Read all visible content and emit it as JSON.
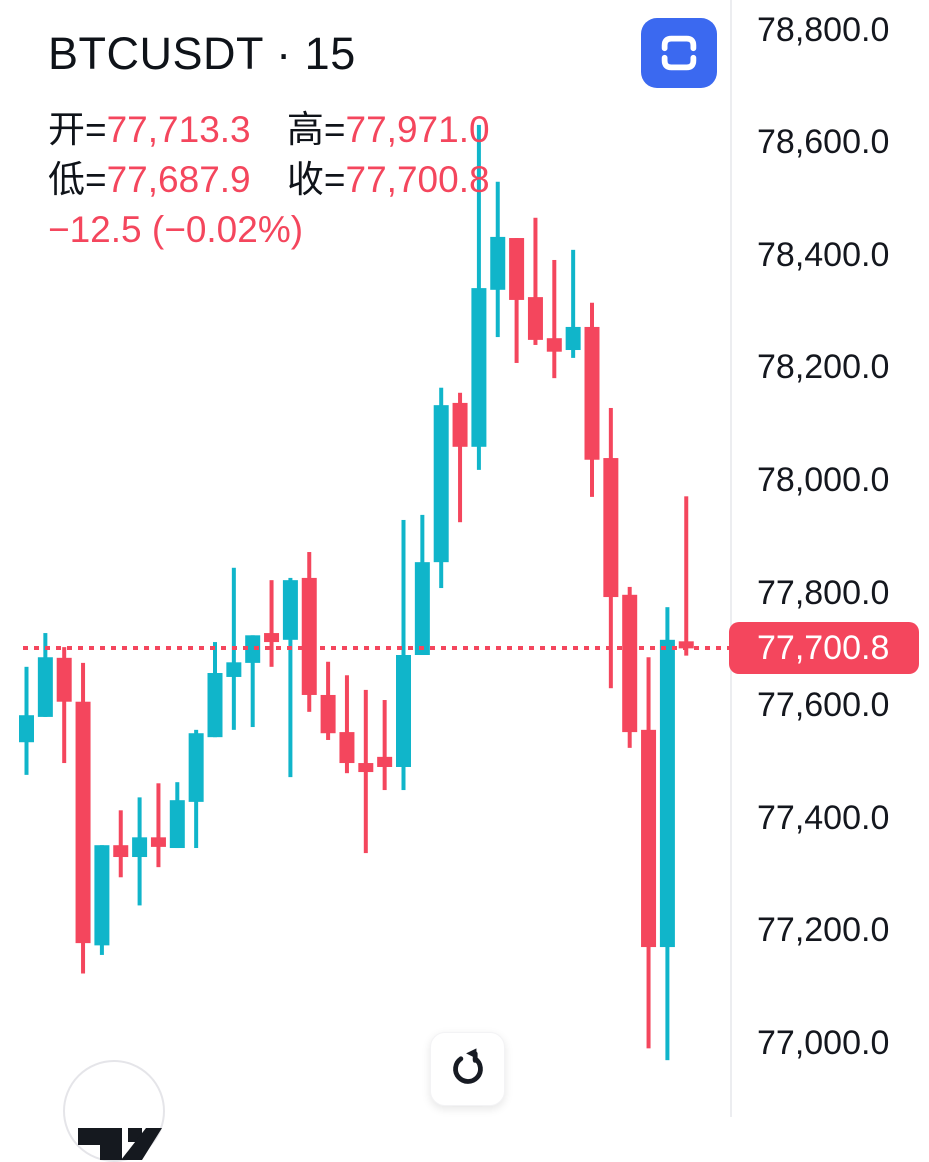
{
  "header": {
    "title": "BTCUSDT · 15",
    "open_label": "开=",
    "open_value": "77,713.3",
    "high_label": "高=",
    "high_value": "77,971.0",
    "low_label": "低=",
    "low_value": "77,687.9",
    "close_label": "收=",
    "close_value": "77,700.8",
    "change": "−12.5 (−0.02%)"
  },
  "icons": {
    "fullscreen": "fullscreen-frame-icon",
    "refresh": "refresh-icon",
    "logo": "tradingview-logo"
  },
  "y_axis": {
    "ticks": [
      {
        "value": 78800,
        "label": "78,800.0"
      },
      {
        "value": 78600,
        "label": "78,600.0"
      },
      {
        "value": 78400,
        "label": "78,400.0"
      },
      {
        "value": 78200,
        "label": "78,200.0"
      },
      {
        "value": 78000,
        "label": "78,000.0"
      },
      {
        "value": 77800,
        "label": "77,800.0"
      },
      {
        "value": 77600,
        "label": "77,600.0"
      },
      {
        "value": 77400,
        "label": "77,400.0"
      },
      {
        "value": 77200,
        "label": "77,200.0"
      },
      {
        "value": 77000,
        "label": "77,000.0"
      }
    ],
    "price_badge": {
      "value": 77700.8,
      "label": "77,700.8"
    }
  },
  "chart_data": {
    "type": "candlestick",
    "title": "BTCUSDT · 15",
    "symbol": "BTCUSDT",
    "interval": "15",
    "price_range_top": 78853,
    "price_range_bottom": 76868,
    "price_line_value": 77700.8,
    "up_color": "#10B5CA",
    "down_color": "#F4465D",
    "grid": false,
    "candle_format": [
      "open",
      "high",
      "low",
      "close"
    ],
    "candles": [
      [
        77534,
        77668,
        77476,
        77582
      ],
      [
        77579,
        77728,
        77579,
        77685
      ],
      [
        77684,
        77703,
        77497,
        77606
      ],
      [
        77606,
        77675,
        77123,
        77177
      ],
      [
        77173,
        77351,
        77156,
        77351
      ],
      [
        77351,
        77413,
        77294,
        77330
      ],
      [
        77330,
        77436,
        77244,
        77365
      ],
      [
        77365,
        77461,
        77312,
        77348
      ],
      [
        77346,
        77463,
        77346,
        77431
      ],
      [
        77428,
        77556,
        77346,
        77550
      ],
      [
        77543,
        77712,
        77543,
        77657
      ],
      [
        77650,
        77844,
        77556,
        77676
      ],
      [
        77675,
        77724,
        77561,
        77724
      ],
      [
        77728,
        77822,
        77668,
        77712
      ],
      [
        77716,
        77826,
        77472,
        77822
      ],
      [
        77826,
        77872,
        77588,
        77618
      ],
      [
        77618,
        77677,
        77538,
        77550
      ],
      [
        77552,
        77653,
        77479,
        77497
      ],
      [
        77497,
        77627,
        77337,
        77481
      ],
      [
        77508,
        77609,
        77449,
        77490
      ],
      [
        77490,
        77929,
        77449,
        77689
      ],
      [
        77689,
        77938,
        77689,
        77854
      ],
      [
        77854,
        78164,
        77808,
        78133
      ],
      [
        78137,
        78155,
        77925,
        78059
      ],
      [
        78059,
        78631,
        78018,
        78341
      ],
      [
        78338,
        78530,
        78254,
        78432
      ],
      [
        78430,
        78430,
        78208,
        78320
      ],
      [
        78325,
        78466,
        78240,
        78249
      ],
      [
        78252,
        78391,
        78181,
        78228
      ],
      [
        78231,
        78409,
        78217,
        78272
      ],
      [
        78272,
        78315,
        77970,
        78036
      ],
      [
        78039,
        78128,
        77630,
        77792
      ],
      [
        77796,
        77810,
        77524,
        77552
      ],
      [
        77556,
        77685,
        76990,
        77170
      ],
      [
        77170,
        77774,
        76969,
        77716
      ],
      [
        77713.3,
        77971.0,
        77687.9,
        77700.8
      ]
    ]
  },
  "colors": {
    "up": "#10B5CA",
    "down": "#F4465D",
    "accent_blue": "#3B69F0",
    "text": "#0F1319",
    "axis_text": "#14171E",
    "badge_text": "#FFFFFF",
    "separator": "#ECEDF0"
  }
}
